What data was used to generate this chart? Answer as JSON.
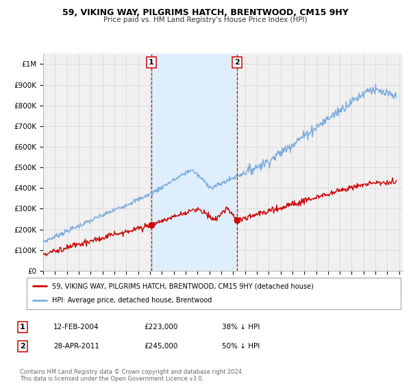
{
  "title": "59, VIKING WAY, PILGRIMS HATCH, BRENTWOOD, CM15 9HY",
  "subtitle": "Price paid vs. HM Land Registry's House Price Index (HPI)",
  "background_color": "#ffffff",
  "plot_bg_color": "#f0f0f0",
  "grid_color": "#d8d8d8",
  "red_line_color": "#cc0000",
  "blue_line_color": "#7aaadd",
  "sale1_date_x": 2004.12,
  "sale1_price": 223000,
  "sale2_date_x": 2011.33,
  "sale2_price": 245000,
  "shaded_region_color": "#ddeeff",
  "vline_color": "#cc0000",
  "ylim_max": 1050000,
  "xlim_min": 1995.0,
  "xlim_max": 2025.3,
  "legend_line1": "59, VIKING WAY, PILGRIMS HATCH, BRENTWOOD, CM15 9HY (detached house)",
  "legend_line2": "HPI: Average price, detached house, Brentwood",
  "table_row1": [
    "1",
    "12-FEB-2004",
    "£223,000",
    "38% ↓ HPI"
  ],
  "table_row2": [
    "2",
    "28-APR-2011",
    "£245,000",
    "50% ↓ HPI"
  ],
  "footnote": "Contains HM Land Registry data © Crown copyright and database right 2024.\nThis data is licensed under the Open Government Licence v3.0.",
  "ytick_labels": [
    "£0",
    "£100K",
    "£200K",
    "£300K",
    "£400K",
    "£500K",
    "£600K",
    "£700K",
    "£800K",
    "£900K",
    "£1M"
  ],
  "ytick_values": [
    0,
    100000,
    200000,
    300000,
    400000,
    500000,
    600000,
    700000,
    800000,
    900000,
    1000000
  ]
}
